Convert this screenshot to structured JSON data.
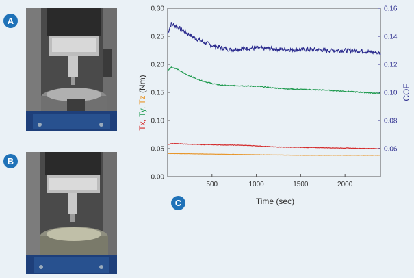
{
  "panels": {
    "a": "A",
    "b": "B",
    "c": "C"
  },
  "colors": {
    "tx": "#d42a2a",
    "ty": "#1e9a4e",
    "tz": "#e8962a",
    "cof": "#2c2c8e",
    "badge": "#1f72b8",
    "background": "#eaf1f6"
  },
  "chart_data": {
    "type": "line",
    "xlabel": "Time (sec)",
    "ylabel_left_parts": [
      {
        "text": "Tx,",
        "color": "#d42a2a"
      },
      {
        "text": " Ty,",
        "color": "#1e9a4e"
      },
      {
        "text": " Tz",
        "color": "#e8962a"
      },
      {
        "text": " (Nm)",
        "color": "#333333"
      }
    ],
    "ylabel_right": "COF",
    "xlim": [
      0,
      2400
    ],
    "ylim_left": [
      0,
      0.3
    ],
    "ylim_right": [
      0.04,
      0.16
    ],
    "xticks": [
      500,
      1000,
      1500,
      2000
    ],
    "yticks_left": [
      "0.00",
      "0.05",
      "0.10",
      "0.15",
      "0.20",
      "0.25",
      "0.30"
    ],
    "yticks_right": [
      "0.06",
      "0.08",
      "0.10",
      "0.12",
      "0.14",
      "0.16"
    ],
    "grid": false,
    "series": [
      {
        "name": "COF",
        "axis": "right",
        "color": "#2c2c8e",
        "noise": 0.0015,
        "x": [
          0,
          40,
          100,
          200,
          300,
          400,
          500,
          600,
          700,
          800,
          900,
          1000,
          1200,
          1400,
          1600,
          1800,
          2000,
          2200,
          2400
        ],
        "y": [
          0.142,
          0.149,
          0.147,
          0.143,
          0.139,
          0.136,
          0.1335,
          0.132,
          0.1305,
          0.131,
          0.1315,
          0.1315,
          0.131,
          0.1305,
          0.1305,
          0.13,
          0.13,
          0.1295,
          0.128
        ]
      },
      {
        "name": "Ty",
        "axis": "left",
        "color": "#1e9a4e",
        "noise": 0.0008,
        "x": [
          0,
          40,
          100,
          200,
          300,
          400,
          500,
          600,
          700,
          800,
          1000,
          1200,
          1400,
          1600,
          1800,
          2000,
          2200,
          2400
        ],
        "y": [
          0.189,
          0.195,
          0.192,
          0.183,
          0.176,
          0.17,
          0.166,
          0.163,
          0.162,
          0.162,
          0.161,
          0.158,
          0.156,
          0.155,
          0.154,
          0.152,
          0.15,
          0.148
        ]
      },
      {
        "name": "Tx",
        "axis": "left",
        "color": "#d42a2a",
        "noise": 0.0004,
        "x": [
          0,
          50,
          200,
          400,
          800,
          1000,
          1200,
          1600,
          2000,
          2400
        ],
        "y": [
          0.057,
          0.059,
          0.058,
          0.057,
          0.056,
          0.055,
          0.053,
          0.052,
          0.051,
          0.05
        ]
      },
      {
        "name": "Tz",
        "axis": "left",
        "color": "#e8962a",
        "noise": 0.0002,
        "x": [
          0,
          100,
          500,
          1000,
          1500,
          2000,
          2400
        ],
        "y": [
          0.041,
          0.041,
          0.04,
          0.039,
          0.038,
          0.038,
          0.038
        ]
      }
    ]
  }
}
